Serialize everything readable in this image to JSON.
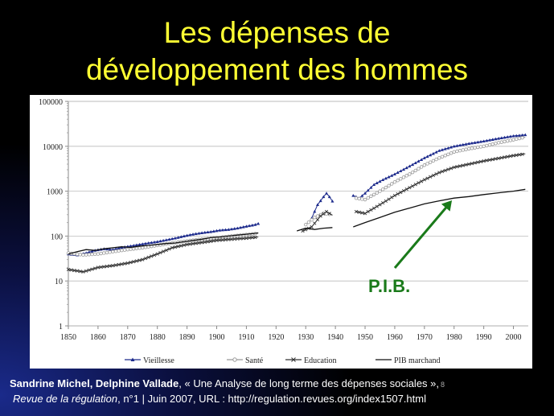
{
  "slide": {
    "title_line1": "Les dépenses de",
    "title_line2": "développement des hommes",
    "annotation": "P.I.B.",
    "source_authors": "Sandrine Michel, Delphine Vallade",
    "source_sep1": ", « ",
    "source_title": "Une Analyse de long terme des dépenses sociales",
    "source_sep2": " »,",
    "slide_number": "8",
    "source_journal": "Revue de la régulation",
    "source_rest": ", n°1 | Juin 2007, URL : http://regulation.revues.org/index1507.html",
    "colors": {
      "title": "#ffff33",
      "annotation": "#1a7a1a",
      "arrow": "#1a7a1a"
    }
  },
  "chart_data": {
    "type": "line",
    "yscale": "log",
    "ylim": [
      1,
      100000
    ],
    "xlim": [
      1850,
      2005
    ],
    "xticks": [
      "1850",
      "1860",
      "1870",
      "1880",
      "1890",
      "1900",
      "1910",
      "1920",
      "1930",
      "1940",
      "1950",
      "1960",
      "1970",
      "1980",
      "1990",
      "2000"
    ],
    "yticks": [
      "1",
      "10",
      "100",
      "1000",
      "10000",
      "100000"
    ],
    "legend_position": "bottom",
    "series": [
      {
        "name": "Vieillesse",
        "color": "#1c2a8c",
        "marker": "triangle",
        "segments": [
          [
            [
              1850,
              40
            ],
            [
              1853,
              38
            ],
            [
              1856,
              42
            ],
            [
              1859,
              48
            ],
            [
              1862,
              52
            ],
            [
              1865,
              50
            ],
            [
              1868,
              56
            ],
            [
              1871,
              60
            ],
            [
              1874,
              65
            ],
            [
              1877,
              70
            ],
            [
              1880,
              75
            ],
            [
              1883,
              82
            ],
            [
              1886,
              90
            ],
            [
              1889,
              100
            ],
            [
              1892,
              110
            ],
            [
              1895,
              118
            ],
            [
              1898,
              125
            ],
            [
              1901,
              135
            ],
            [
              1904,
              140
            ],
            [
              1907,
              150
            ],
            [
              1910,
              165
            ],
            [
              1913,
              180
            ],
            [
              1914,
              190
            ]
          ],
          [
            [
              1932,
              250
            ],
            [
              1934,
              500
            ],
            [
              1936,
              750
            ],
            [
              1937,
              900
            ],
            [
              1938,
              750
            ],
            [
              1939,
              600
            ]
          ],
          [
            [
              1946,
              800
            ],
            [
              1948,
              700
            ],
            [
              1950,
              900
            ],
            [
              1953,
              1400
            ],
            [
              1956,
              1800
            ],
            [
              1960,
              2400
            ],
            [
              1965,
              3600
            ],
            [
              1970,
              5500
            ],
            [
              1975,
              8000
            ],
            [
              1980,
              10000
            ],
            [
              1985,
              11500
            ],
            [
              1990,
              13000
            ],
            [
              1995,
              15000
            ],
            [
              2000,
              17000
            ],
            [
              2004,
              18000
            ]
          ]
        ]
      },
      {
        "name": "Santé",
        "color": "#999999",
        "marker": "circle",
        "segments": [
          [
            [
              1850,
              42
            ],
            [
              1855,
              38
            ],
            [
              1860,
              40
            ],
            [
              1865,
              45
            ],
            [
              1870,
              50
            ],
            [
              1875,
              55
            ],
            [
              1880,
              62
            ],
            [
              1885,
              70
            ],
            [
              1890,
              78
            ],
            [
              1895,
              85
            ],
            [
              1900,
              92
            ],
            [
              1905,
              100
            ],
            [
              1910,
              108
            ],
            [
              1914,
              115
            ]
          ],
          [
            [
              1930,
              180
            ],
            [
              1933,
              260
            ],
            [
              1936,
              320
            ],
            [
              1939,
              300
            ]
          ],
          [
            [
              1947,
              700
            ],
            [
              1950,
              650
            ],
            [
              1955,
              1000
            ],
            [
              1960,
              1600
            ],
            [
              1965,
              2400
            ],
            [
              1970,
              3800
            ],
            [
              1975,
              5500
            ],
            [
              1980,
              7500
            ],
            [
              1985,
              8800
            ],
            [
              1990,
              10000
            ],
            [
              1995,
              12000
            ],
            [
              2000,
              14000
            ],
            [
              2004,
              16000
            ]
          ]
        ]
      },
      {
        "name": "Education",
        "color": "#333333",
        "marker": "x",
        "segments": [
          [
            [
              1850,
              18
            ],
            [
              1855,
              16
            ],
            [
              1860,
              20
            ],
            [
              1865,
              22
            ],
            [
              1870,
              25
            ],
            [
              1875,
              30
            ],
            [
              1880,
              40
            ],
            [
              1885,
              55
            ],
            [
              1890,
              65
            ],
            [
              1895,
              72
            ],
            [
              1900,
              80
            ],
            [
              1905,
              85
            ],
            [
              1910,
              90
            ],
            [
              1914,
              95
            ]
          ],
          [
            [
              1929,
              130
            ],
            [
              1932,
              160
            ],
            [
              1935,
              280
            ],
            [
              1937,
              350
            ],
            [
              1939,
              290
            ]
          ],
          [
            [
              1947,
              350
            ],
            [
              1950,
              320
            ],
            [
              1955,
              500
            ],
            [
              1960,
              800
            ],
            [
              1965,
              1200
            ],
            [
              1970,
              1800
            ],
            [
              1975,
              2600
            ],
            [
              1980,
              3400
            ],
            [
              1985,
              4000
            ],
            [
              1990,
              4700
            ],
            [
              1995,
              5400
            ],
            [
              2000,
              6200
            ],
            [
              2004,
              6800
            ]
          ]
        ]
      },
      {
        "name": "PIB marchand",
        "color": "#111111",
        "marker": "none",
        "segments": [
          [
            [
              1850,
              40
            ],
            [
              1853,
              45
            ],
            [
              1856,
              50
            ],
            [
              1859,
              48
            ],
            [
              1862,
              52
            ],
            [
              1865,
              55
            ],
            [
              1868,
              58
            ],
            [
              1871,
              56
            ],
            [
              1874,
              60
            ],
            [
              1877,
              62
            ],
            [
              1880,
              65
            ],
            [
              1883,
              68
            ],
            [
              1886,
              70
            ],
            [
              1889,
              75
            ],
            [
              1892,
              80
            ],
            [
              1895,
              85
            ],
            [
              1898,
              92
            ],
            [
              1901,
              95
            ],
            [
              1904,
              100
            ],
            [
              1907,
              105
            ],
            [
              1910,
              110
            ],
            [
              1913,
              115
            ],
            [
              1914,
              118
            ]
          ],
          [
            [
              1927,
              130
            ],
            [
              1930,
              150
            ],
            [
              1933,
              140
            ],
            [
              1936,
              150
            ],
            [
              1939,
              155
            ]
          ],
          [
            [
              1946,
              160
            ],
            [
              1950,
              200
            ],
            [
              1955,
              260
            ],
            [
              1960,
              340
            ],
            [
              1965,
              420
            ],
            [
              1970,
              520
            ],
            [
              1975,
              610
            ],
            [
              1980,
              700
            ],
            [
              1985,
              760
            ],
            [
              1990,
              840
            ],
            [
              1995,
              920
            ],
            [
              2000,
              1000
            ],
            [
              2004,
              1100
            ]
          ]
        ]
      }
    ]
  }
}
